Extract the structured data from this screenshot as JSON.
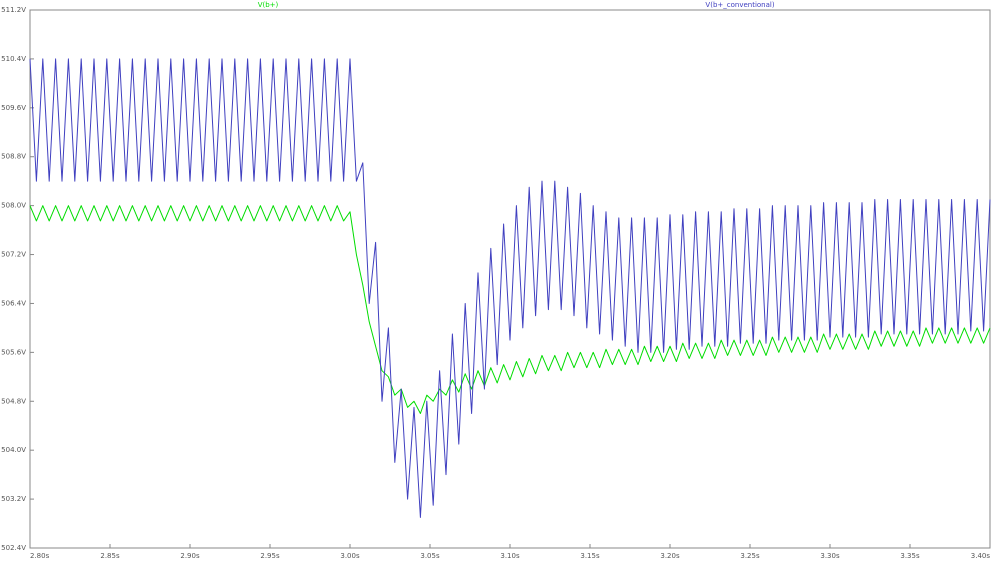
{
  "chart_data": {
    "type": "line",
    "x": [
      2.8,
      2.804,
      2.808,
      2.812,
      2.816,
      2.82,
      2.824,
      2.828,
      2.832,
      2.836,
      2.84,
      2.844,
      2.848,
      2.852,
      2.856,
      2.86,
      2.864,
      2.868,
      2.872,
      2.876,
      2.88,
      2.884,
      2.888,
      2.892,
      2.896,
      2.9,
      2.904,
      2.908,
      2.912,
      2.916,
      2.92,
      2.924,
      2.928,
      2.932,
      2.936,
      2.94,
      2.944,
      2.948,
      2.952,
      2.956,
      2.96,
      2.964,
      2.968,
      2.972,
      2.976,
      2.98,
      2.984,
      2.988,
      2.992,
      2.996,
      3.0,
      3.004,
      3.008,
      3.012,
      3.016,
      3.02,
      3.024,
      3.028,
      3.032,
      3.036,
      3.04,
      3.044,
      3.048,
      3.052,
      3.056,
      3.06,
      3.064,
      3.068,
      3.072,
      3.076,
      3.08,
      3.084,
      3.088,
      3.092,
      3.096,
      3.1,
      3.104,
      3.108,
      3.112,
      3.116,
      3.12,
      3.124,
      3.128,
      3.132,
      3.136,
      3.14,
      3.144,
      3.148,
      3.152,
      3.156,
      3.16,
      3.164,
      3.168,
      3.172,
      3.176,
      3.18,
      3.184,
      3.188,
      3.192,
      3.196,
      3.2,
      3.204,
      3.208,
      3.212,
      3.216,
      3.22,
      3.224,
      3.228,
      3.232,
      3.236,
      3.24,
      3.244,
      3.248,
      3.252,
      3.256,
      3.26,
      3.264,
      3.268,
      3.272,
      3.276,
      3.28,
      3.284,
      3.288,
      3.292,
      3.296,
      3.3,
      3.304,
      3.308,
      3.312,
      3.316,
      3.32,
      3.324,
      3.328,
      3.332,
      3.336,
      3.34,
      3.344,
      3.348,
      3.352,
      3.356,
      3.36,
      3.364,
      3.368,
      3.372,
      3.376,
      3.38,
      3.384,
      3.388,
      3.392,
      3.396,
      3.4
    ],
    "series": [
      {
        "name": "V(b+)",
        "color": "#00dd00",
        "values": [
          508,
          507.75,
          508,
          507.75,
          508,
          507.75,
          508,
          507.75,
          508,
          507.75,
          508,
          507.75,
          508,
          507.75,
          508,
          507.75,
          508,
          507.75,
          508,
          507.75,
          508,
          507.75,
          508,
          507.75,
          508,
          507.75,
          508,
          507.75,
          508,
          507.75,
          508,
          507.75,
          508,
          507.75,
          508,
          507.75,
          508,
          507.75,
          508,
          507.75,
          508,
          507.75,
          508,
          507.75,
          508,
          507.75,
          508,
          507.75,
          508,
          507.75,
          507.9,
          507.2,
          506.7,
          506.1,
          505.7,
          505.3,
          505.2,
          504.9,
          505,
          504.7,
          504.8,
          504.6,
          504.9,
          504.8,
          505,
          504.9,
          505.15,
          504.95,
          505.25,
          505,
          505.3,
          505.05,
          505.35,
          505.1,
          505.4,
          505.15,
          505.45,
          505.2,
          505.5,
          505.25,
          505.55,
          505.3,
          505.55,
          505.3,
          505.6,
          505.35,
          505.6,
          505.35,
          505.6,
          505.35,
          505.65,
          505.4,
          505.65,
          505.4,
          505.65,
          505.4,
          505.7,
          505.45,
          505.7,
          505.45,
          505.7,
          505.45,
          505.75,
          505.5,
          505.75,
          505.5,
          505.75,
          505.5,
          505.8,
          505.55,
          505.8,
          505.55,
          505.8,
          505.55,
          505.8,
          505.55,
          505.85,
          505.6,
          505.85,
          505.6,
          505.85,
          505.6,
          505.85,
          505.6,
          505.9,
          505.65,
          505.9,
          505.65,
          505.9,
          505.65,
          505.9,
          505.65,
          505.95,
          505.7,
          505.95,
          505.7,
          505.95,
          505.7,
          505.95,
          505.7,
          506,
          505.75,
          506,
          505.75,
          506,
          505.75,
          506,
          505.75,
          506,
          505.75,
          506
        ]
      },
      {
        "name": "V(b+_conventional)",
        "color": "#4040c0",
        "values": [
          510.4,
          508.4,
          510.4,
          508.4,
          510.4,
          508.4,
          510.4,
          508.4,
          510.4,
          508.4,
          510.4,
          508.4,
          510.4,
          508.4,
          510.4,
          508.4,
          510.4,
          508.4,
          510.4,
          508.4,
          510.4,
          508.4,
          510.4,
          508.4,
          510.4,
          508.4,
          510.4,
          508.4,
          510.4,
          508.4,
          510.4,
          508.4,
          510.4,
          508.4,
          510.4,
          508.4,
          510.4,
          508.4,
          510.4,
          508.4,
          510.4,
          508.4,
          510.4,
          508.4,
          510.4,
          508.4,
          510.4,
          508.4,
          510.4,
          508.4,
          510.4,
          508.4,
          508.7,
          506.4,
          507.4,
          504.8,
          506,
          503.8,
          505,
          503.2,
          504.7,
          502.9,
          504.8,
          503.1,
          505.3,
          503.6,
          505.9,
          504.1,
          506.4,
          504.6,
          506.9,
          505,
          507.3,
          505.4,
          507.7,
          505.8,
          508,
          506,
          508.3,
          506.2,
          508.4,
          506.3,
          508.4,
          506.3,
          508.3,
          506.2,
          508.2,
          506,
          508,
          505.9,
          507.9,
          505.8,
          507.8,
          505.7,
          507.8,
          505.6,
          507.8,
          505.6,
          507.8,
          505.6,
          507.85,
          505.65,
          507.85,
          505.65,
          507.9,
          505.7,
          507.9,
          505.7,
          507.9,
          505.7,
          507.95,
          505.75,
          507.95,
          505.75,
          507.95,
          505.75,
          508,
          505.8,
          508,
          505.8,
          508,
          505.8,
          508,
          505.8,
          508.05,
          505.85,
          508.05,
          505.85,
          508.05,
          505.85,
          508.05,
          505.85,
          508.1,
          505.9,
          508.1,
          505.9,
          508.1,
          505.9,
          508.1,
          505.9,
          508.1,
          505.9,
          508.1,
          505.9,
          508.1,
          505.9,
          508.1,
          505.95,
          508.1,
          505.95,
          508.1
        ]
      }
    ],
    "xlim": [
      2.8,
      3.4
    ],
    "xticks": [
      {
        "value": 2.8,
        "label": "2.80s"
      },
      {
        "value": 2.85,
        "label": "2.85s"
      },
      {
        "value": 2.9,
        "label": "2.90s"
      },
      {
        "value": 2.95,
        "label": "2.95s"
      },
      {
        "value": 3.0,
        "label": "3.00s"
      },
      {
        "value": 3.05,
        "label": "3.05s"
      },
      {
        "value": 3.1,
        "label": "3.10s"
      },
      {
        "value": 3.15,
        "label": "3.15s"
      },
      {
        "value": 3.2,
        "label": "3.20s"
      },
      {
        "value": 3.25,
        "label": "3.25s"
      },
      {
        "value": 3.3,
        "label": "3.30s"
      },
      {
        "value": 3.35,
        "label": "3.35s"
      },
      {
        "value": 3.4,
        "label": "3.40s"
      }
    ],
    "ylim": [
      502.4,
      511.2
    ],
    "yticks": [
      {
        "value": 502.4,
        "label": "502.4V"
      },
      {
        "value": 503.2,
        "label": "503.2V"
      },
      {
        "value": 504.0,
        "label": "504.0V"
      },
      {
        "value": 504.8,
        "label": "504.8V"
      },
      {
        "value": 505.6,
        "label": "505.6V"
      },
      {
        "value": 506.4,
        "label": "506.4V"
      },
      {
        "value": 507.2,
        "label": "507.2V"
      },
      {
        "value": 508.0,
        "label": "508.0V"
      },
      {
        "value": 508.8,
        "label": "508.8V"
      },
      {
        "value": 509.6,
        "label": "509.6V"
      },
      {
        "value": 510.4,
        "label": "510.4V"
      },
      {
        "value": 511.2,
        "label": "511.2V"
      }
    ],
    "grid": false
  }
}
